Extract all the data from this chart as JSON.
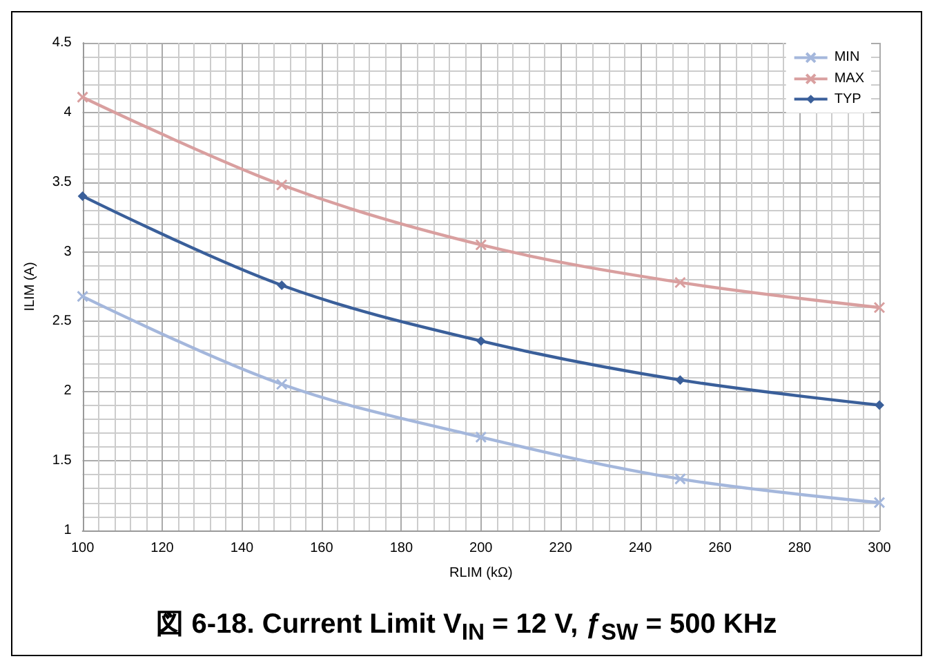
{
  "chart_data": {
    "type": "line",
    "title": "図 6-18. Current Limit V$_{IN}$ = 12 V, ƒ$_{SW}$ = 500 KHz",
    "xlabel": "RLIM (kΩ)",
    "ylabel": "ILIM (A)",
    "x": [
      100,
      150,
      200,
      250,
      300
    ],
    "series": [
      {
        "name": "MIN",
        "color": "#a4b7dc",
        "marker": "cross",
        "values": [
          2.68,
          2.05,
          1.67,
          1.37,
          1.2
        ]
      },
      {
        "name": "MAX",
        "color": "#d99f9f",
        "marker": "cross",
        "values": [
          4.11,
          3.48,
          3.05,
          2.78,
          2.6
        ]
      },
      {
        "name": "TYP",
        "color": "#3a5f9a",
        "marker": "diamond",
        "values": [
          3.4,
          2.76,
          2.36,
          2.08,
          1.9
        ]
      }
    ],
    "xlim": [
      100,
      300
    ],
    "xticks": [
      100,
      120,
      140,
      160,
      180,
      200,
      220,
      240,
      260,
      280,
      300
    ],
    "ylim": [
      1,
      4.5
    ],
    "yticks": [
      1,
      1.5,
      2,
      2.5,
      3,
      3.5,
      4,
      4.5
    ],
    "grid": true,
    "legend": "top right"
  }
}
